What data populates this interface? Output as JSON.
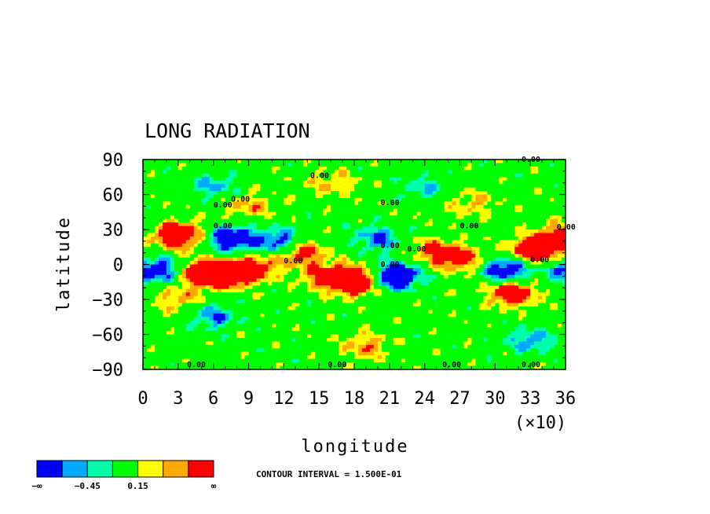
{
  "chart_data": {
    "type": "heatmap",
    "title": "LONG RADIATION",
    "xlabel": "longitude",
    "ylabel": "latitude",
    "x_multiplier": "(×10)",
    "xlim": [
      0,
      36
    ],
    "ylim": [
      -90,
      90
    ],
    "x_ticks": [
      "0",
      "3",
      "6",
      "9",
      "12",
      "15",
      "18",
      "21",
      "24",
      "27",
      "30",
      "33",
      "36"
    ],
    "y_ticks": [
      "90",
      "60",
      "30",
      "0",
      "−30",
      "−60",
      "−90"
    ],
    "contour_label": "0.00",
    "contour_interval_text": "CONTOUR INTERVAL = 1.500E-01",
    "contour_interval": 0.15,
    "colorbar": {
      "colors": [
        "#0000ff",
        "#00aaff",
        "#00ffaa",
        "#00ff00",
        "#ffff00",
        "#ffaa00",
        "#ff0000"
      ],
      "labels": [
        "−∞",
        "−0.45",
        "0.15",
        "∞"
      ]
    },
    "features": [
      {
        "lon": 3.0,
        "lat": 25,
        "value": 0.9
      },
      {
        "lon": 1.0,
        "lat": -5,
        "value": -0.7
      },
      {
        "lon": 5.5,
        "lat": -8,
        "value": 1.0
      },
      {
        "lon": 7.5,
        "lat": -8,
        "value": 0.7
      },
      {
        "lon": 9.5,
        "lat": -3,
        "value": 0.6
      },
      {
        "lon": 7.5,
        "lat": 22,
        "value": -0.8
      },
      {
        "lon": 11.5,
        "lat": 20,
        "value": -0.6
      },
      {
        "lon": 13.5,
        "lat": 10,
        "value": 0.6
      },
      {
        "lon": 15.5,
        "lat": -10,
        "value": 0.5
      },
      {
        "lon": 18.0,
        "lat": -14,
        "value": 1.1
      },
      {
        "lon": 21.5,
        "lat": -10,
        "value": -1.0
      },
      {
        "lon": 20.0,
        "lat": 22,
        "value": -0.5
      },
      {
        "lon": 24.5,
        "lat": 12,
        "value": 0.4
      },
      {
        "lon": 27.0,
        "lat": 5,
        "value": 0.6
      },
      {
        "lon": 31.0,
        "lat": -5,
        "value": -0.8
      },
      {
        "lon": 33.5,
        "lat": 12,
        "value": 1.0
      },
      {
        "lon": 31.5,
        "lat": -24,
        "value": 0.8
      },
      {
        "lon": 3.0,
        "lat": -30,
        "value": 0.35
      },
      {
        "lon": 6.0,
        "lat": -45,
        "value": -0.45
      },
      {
        "lon": 19.0,
        "lat": -70,
        "value": 0.4
      },
      {
        "lon": 33.0,
        "lat": -65,
        "value": -0.45
      },
      {
        "lon": 9.0,
        "lat": 50,
        "value": 0.35
      },
      {
        "lon": 16.0,
        "lat": 70,
        "value": 0.3
      },
      {
        "lon": 28.0,
        "lat": 52,
        "value": 0.3
      },
      {
        "lon": 6.0,
        "lat": 68,
        "value": -0.35
      },
      {
        "lon": 24.0,
        "lat": 66,
        "value": -0.3
      },
      {
        "lon": 36.0,
        "lat": 25,
        "value": 0.6
      },
      {
        "lon": 36.0,
        "lat": -5,
        "value": -0.5
      }
    ]
  }
}
